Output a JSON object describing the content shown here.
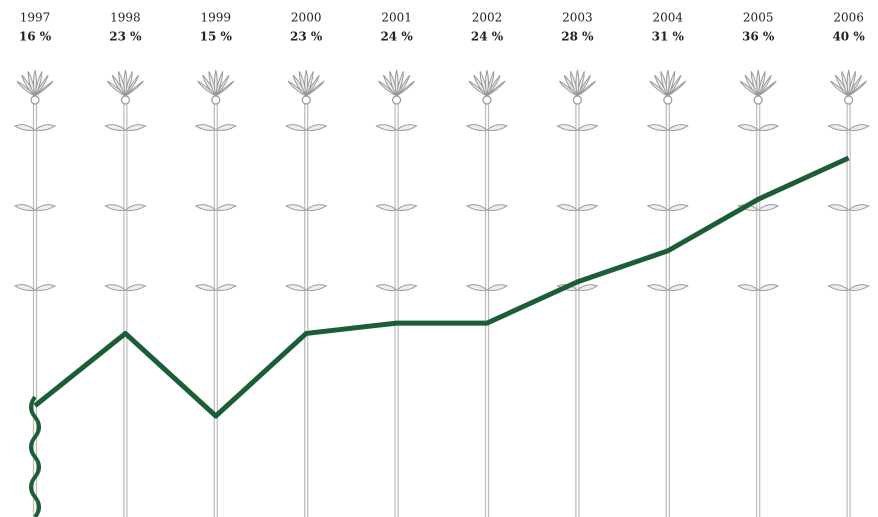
{
  "chart_data": {
    "type": "line",
    "categories": [
      "1997",
      "1998",
      "1999",
      "2000",
      "2001",
      "2002",
      "2003",
      "2004",
      "2005",
      "2006"
    ],
    "values": [
      16,
      23,
      15,
      23,
      24,
      24,
      28,
      31,
      36,
      40
    ],
    "value_labels": [
      "16 %",
      "23 %",
      "15 %",
      "23 %",
      "24 %",
      "24 %",
      "28 %",
      "31 %",
      "36 %",
      "40 %"
    ],
    "color": "#1b5e36"
  }
}
